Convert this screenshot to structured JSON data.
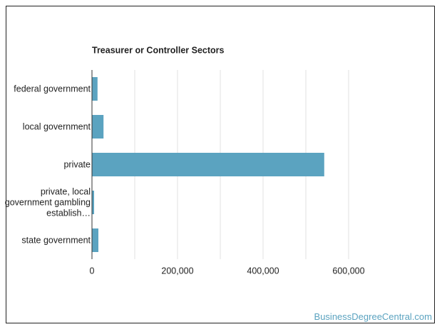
{
  "chart_data": {
    "type": "bar",
    "orientation": "horizontal",
    "title": "Treasurer or Controller Sectors",
    "categories": [
      "federal government",
      "local government",
      "private",
      "private, local government gambling establish…",
      "state government"
    ],
    "values": [
      13000,
      27000,
      543000,
      5000,
      15000
    ],
    "color": "#5ba3c0",
    "xlim": [
      0,
      700000
    ],
    "xticks": [
      0,
      {
        "value": 200000,
        "label": "200,000"
      },
      {
        "value": 400000,
        "label": "400,000"
      },
      {
        "value": 600000,
        "label": "600,000"
      }
    ],
    "xminorticks": [
      100000,
      300000,
      500000
    ],
    "grid": true
  },
  "watermark": "BusinessDegreeCentral.com"
}
